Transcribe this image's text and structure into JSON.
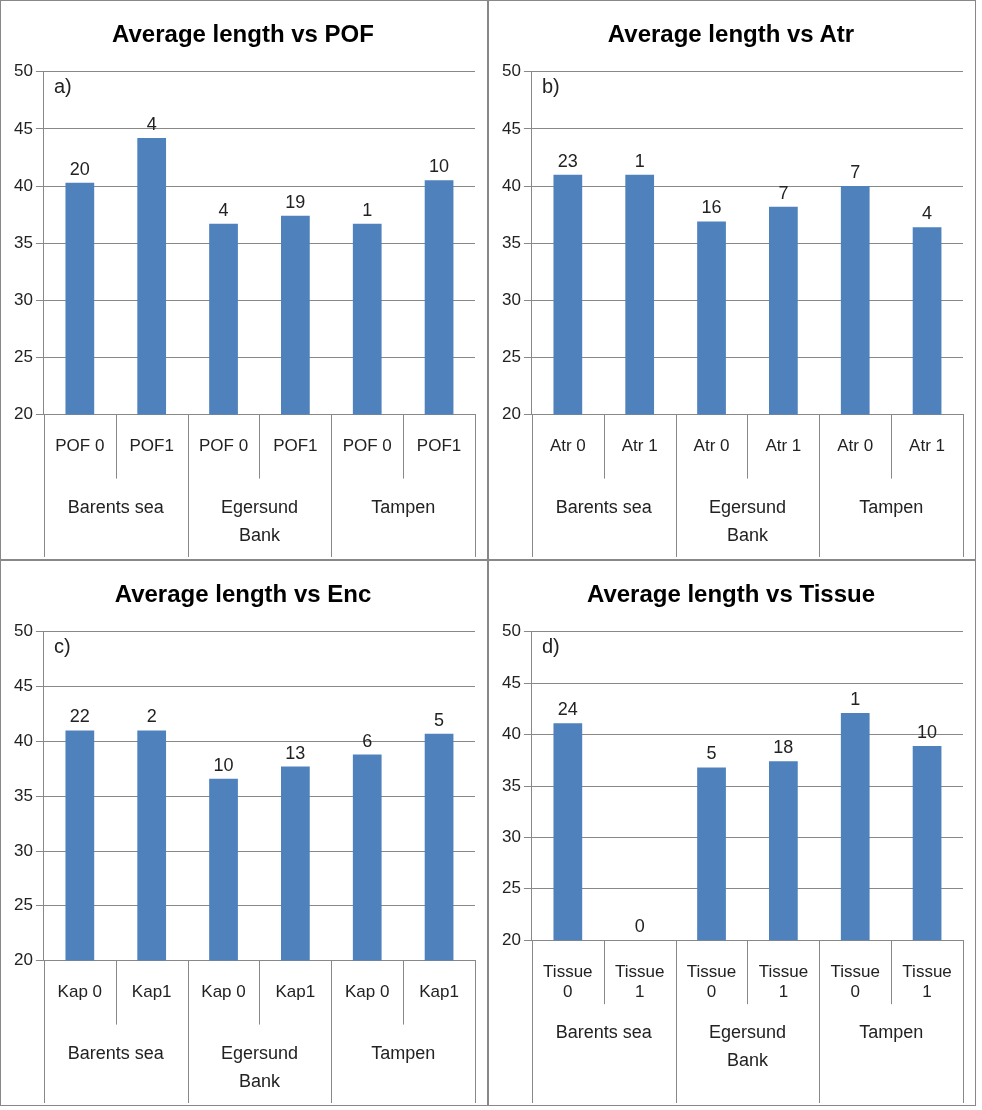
{
  "chart_data": [
    {
      "type": "bar",
      "title": "Average length vs POF",
      "categories": [
        "POF 0",
        "POF1",
        "POF 0",
        "POF1",
        "POF 0",
        "POF1"
      ],
      "values": [
        40.3,
        44.2,
        36.7,
        37.4,
        36.7,
        40.5
      ],
      "color": "#4f81bd",
      "ylim": [
        20,
        50
      ],
      "yticks": [
        20,
        25,
        30,
        35,
        40,
        45,
        50
      ],
      "grid": "y",
      "legend": false,
      "annotations": [
        "a)",
        "Barents sea",
        "Egersund Bank",
        "Tampen",
        {
          "text": "20",
          "y": 40.3
        },
        {
          "text": "4",
          "y": 44.2
        },
        {
          "text": "4",
          "y": 36.7
        },
        {
          "text": "19",
          "y": 37.4
        },
        {
          "text": "1",
          "y": 36.7
        },
        {
          "text": "10",
          "y": 40.5
        }
      ]
    },
    {
      "type": "bar",
      "title": "Average length vs Atr",
      "categories": [
        "Atr 0",
        "Atr 1",
        "Atr 0",
        "Atr 1",
        "Atr 0",
        "Atr 1"
      ],
      "values": [
        41,
        41,
        36.9,
        38.2,
        40,
        36.4
      ],
      "color": "#4f81bd",
      "ylim": [
        20,
        50
      ],
      "yticks": [
        20,
        25,
        30,
        35,
        40,
        45,
        50
      ],
      "grid": "y",
      "legend": false,
      "annotations": [
        "b)",
        "Barents sea",
        "Egersund Bank",
        "Tampen",
        {
          "text": "23",
          "y": 41
        },
        {
          "text": "1",
          "y": 41
        },
        {
          "text": "16",
          "y": 36.9
        },
        {
          "text": "7",
          "y": 38.2
        },
        {
          "text": "7",
          "y": 40
        },
        {
          "text": "4",
          "y": 36.4
        }
      ]
    },
    {
      "type": "bar",
      "title": "Average length vs Enc",
      "categories": [
        "Kap 0",
        "Kap1",
        "Kap 0",
        "Kap1",
        "Kap 0",
        "Kap1"
      ],
      "values": [
        41,
        41,
        36.6,
        37.7,
        38.8,
        40.7
      ],
      "color": "#4f81bd",
      "ylim": [
        20,
        50
      ],
      "yticks": [
        20,
        25,
        30,
        35,
        40,
        45,
        50
      ],
      "grid": "y",
      "legend": false,
      "annotations": [
        "c)",
        "Barents sea",
        "Egersund Bank",
        "Tampen",
        {
          "text": "22",
          "y": 41
        },
        {
          "text": "2",
          "y": 41
        },
        {
          "text": "10",
          "y": 36.6
        },
        {
          "text": "13",
          "y": 37.7
        },
        {
          "text": "6",
          "y": 38.8
        },
        {
          "text": "5",
          "y": 40.7
        }
      ]
    },
    {
      "type": "bar",
      "title": "Average length vs Tissue",
      "categories": [
        "Tissue 0",
        "Tissue 1",
        "Tissue 0",
        "Tissue 1",
        "Tissue 0",
        "Tissue 1"
      ],
      "values": [
        41.1,
        null,
        36.8,
        37.4,
        42.1,
        38.9
      ],
      "color": "#4f81bd",
      "ylim": [
        20,
        50
      ],
      "yticks": [
        20,
        25,
        30,
        35,
        40,
        45,
        50
      ],
      "grid": "y",
      "legend": false,
      "annotations": [
        "d)",
        "Barents sea",
        "Egersund Bank",
        "Tampen",
        {
          "text": "24",
          "y": 41.1
        },
        {
          "text": "0"
        },
        {
          "text": "5",
          "y": 36.8
        },
        {
          "text": "18",
          "y": 37.4
        },
        {
          "text": "1",
          "y": 42.1
        },
        {
          "text": "10",
          "y": 38.9
        }
      ]
    }
  ]
}
